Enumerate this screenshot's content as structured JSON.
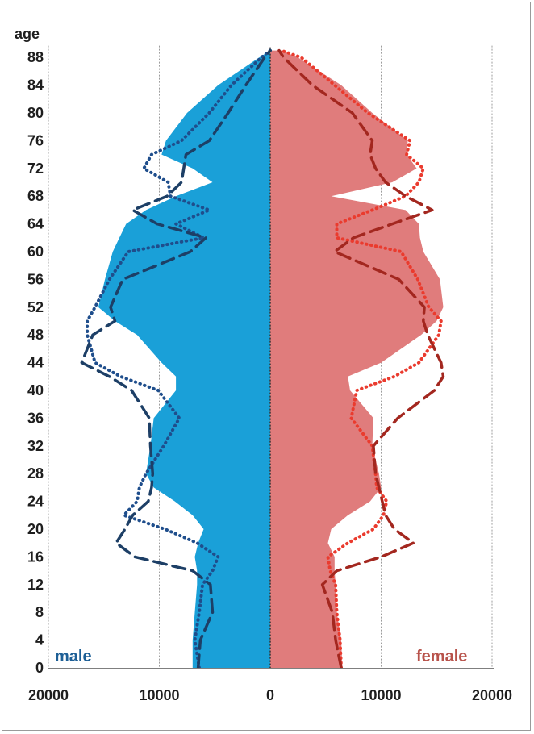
{
  "chart_data": {
    "type": "area",
    "orientation": "population-pyramid",
    "y_axis_title": "age",
    "y_ticks": [
      0,
      4,
      8,
      12,
      16,
      20,
      24,
      28,
      32,
      36,
      40,
      44,
      48,
      52,
      56,
      60,
      64,
      68,
      72,
      76,
      80,
      84,
      88
    ],
    "x_tick_labels": [
      "20000",
      "10000",
      "0",
      "10000",
      "20000"
    ],
    "x_tick_values": [
      -20000,
      -10000,
      0,
      10000,
      20000
    ],
    "xlim": [
      -20000,
      20000
    ],
    "ylim": [
      0,
      89
    ],
    "grid": "vertical dashed",
    "ages": [
      0,
      4,
      8,
      12,
      14,
      16,
      18,
      20,
      22,
      24,
      26,
      28,
      32,
      36,
      40,
      42,
      44,
      48,
      50,
      52,
      56,
      60,
      62,
      64,
      66,
      68,
      70,
      72,
      74,
      76,
      80,
      84,
      88,
      89
    ],
    "male": {
      "label": "male",
      "color": "#1aa0d8",
      "dotted_color": "#1f4e8c",
      "dashed_color": "#1d3f66",
      "area": [
        7000,
        7000,
        6800,
        6600,
        6600,
        6800,
        6500,
        6000,
        7000,
        8600,
        10500,
        11200,
        10800,
        10500,
        8500,
        8500,
        9800,
        12000,
        14000,
        15500,
        14900,
        14200,
        13600,
        13000,
        11200,
        8500,
        5200,
        7000,
        9800,
        9400,
        7500,
        4700,
        1000,
        0
      ],
      "dotted": [
        6400,
        6800,
        6400,
        6100,
        5200,
        4700,
        6600,
        9500,
        13200,
        12000,
        11800,
        11200,
        9600,
        8200,
        10100,
        13500,
        15800,
        16500,
        16500,
        15800,
        14500,
        12800,
        6000,
        8500,
        5500,
        9000,
        9200,
        11400,
        10700,
        8000,
        5500,
        3500,
        800,
        0
      ],
      "dashed": [
        6500,
        6300,
        5200,
        5400,
        7000,
        12200,
        13900,
        13100,
        12400,
        11000,
        10700,
        10600,
        10800,
        10900,
        12500,
        14500,
        17000,
        16000,
        14000,
        14400,
        13300,
        7200,
        5800,
        10200,
        12400,
        9300,
        8000,
        7800,
        7600,
        5500,
        3800,
        2200,
        500,
        0
      ]
    },
    "female": {
      "label": "female",
      "color": "#e07c7c",
      "dotted_color": "#ea3b2e",
      "dashed_color": "#a3271f",
      "area": [
        6500,
        6400,
        6000,
        5900,
        5800,
        5800,
        5200,
        5500,
        7000,
        9000,
        10000,
        9800,
        9200,
        9300,
        7200,
        7000,
        10000,
        13600,
        15000,
        15600,
        15300,
        13800,
        13500,
        13400,
        12200,
        5500,
        11000,
        13200,
        12300,
        12400,
        9200,
        6400,
        2500,
        1000
      ],
      "dotted": [
        6400,
        6300,
        6000,
        5900,
        5400,
        5200,
        7000,
        9300,
        10200,
        10500,
        9600,
        9500,
        9200,
        7300,
        7800,
        11200,
        13400,
        15200,
        15400,
        14300,
        13300,
        11800,
        6000,
        6000,
        9200,
        12200,
        13400,
        13800,
        12300,
        12600,
        8800,
        5800,
        2800,
        1000
      ],
      "dashed": [
        6400,
        5900,
        5600,
        4700,
        6000,
        10000,
        12900,
        11200,
        10400,
        10100,
        9800,
        9500,
        9300,
        11500,
        14800,
        15600,
        15400,
        14200,
        13800,
        13900,
        11600,
        5800,
        7500,
        11000,
        14600,
        12200,
        10400,
        9500,
        9000,
        9200,
        7400,
        3800,
        1200,
        800
      ]
    }
  }
}
